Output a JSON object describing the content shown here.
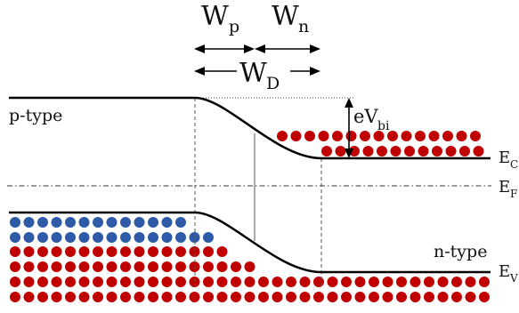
{
  "diagram": {
    "labels": {
      "wp_main": "W",
      "wp_sub": "p",
      "wn_main": "W",
      "wn_sub": "n",
      "wd_main": "W",
      "wd_sub": "D",
      "ev_main": "eV",
      "ev_sub": "bi",
      "p_type": "p-type",
      "n_type": "n-type",
      "ec_main": "E",
      "ec_sub": "C",
      "ef_main": "E",
      "ef_sub": "F",
      "ev_band_main": "E",
      "ev_band_sub": "V"
    },
    "colors": {
      "band_line": "#000000",
      "electron": "#c00000",
      "hole": "#2e5aa8",
      "guide": "#555555"
    }
  }
}
